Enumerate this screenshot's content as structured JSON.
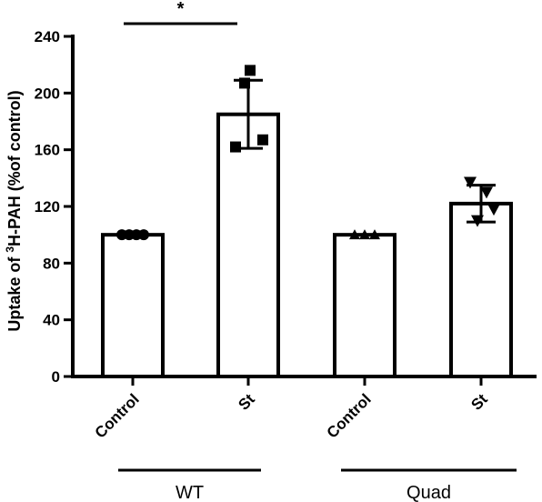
{
  "chart_data": {
    "type": "bar",
    "ylabel_parts": [
      "Uptake of ",
      "3",
      "H-PAH (%of control)"
    ],
    "ylim": [
      0,
      240
    ],
    "yticks": [
      0,
      40,
      80,
      120,
      160,
      200,
      240
    ],
    "yticks_labels": [
      "0",
      "40",
      "80",
      "120",
      "160",
      "200",
      "240"
    ],
    "categories": [
      "Control",
      "St",
      "Control",
      "St"
    ],
    "groups": [
      {
        "label": "WT",
        "categories": [
          0,
          1
        ]
      },
      {
        "label": "Quad",
        "categories": [
          2,
          3
        ]
      }
    ],
    "values": [
      100,
      185,
      100,
      122
    ],
    "errors": [
      0,
      24,
      0,
      13
    ],
    "points": [
      {
        "marker": "circle",
        "values": [
          100,
          100,
          100,
          100
        ]
      },
      {
        "marker": "square",
        "values": [
          216,
          207,
          167,
          162
        ]
      },
      {
        "marker": "triangle-up",
        "values": [
          100,
          100,
          100
        ]
      },
      {
        "marker": "triangle-down",
        "values": [
          137,
          130,
          110,
          118
        ]
      }
    ],
    "significance": [
      {
        "from": 0,
        "to": 1,
        "label": "*"
      }
    ],
    "grid": false,
    "legend": "none"
  }
}
